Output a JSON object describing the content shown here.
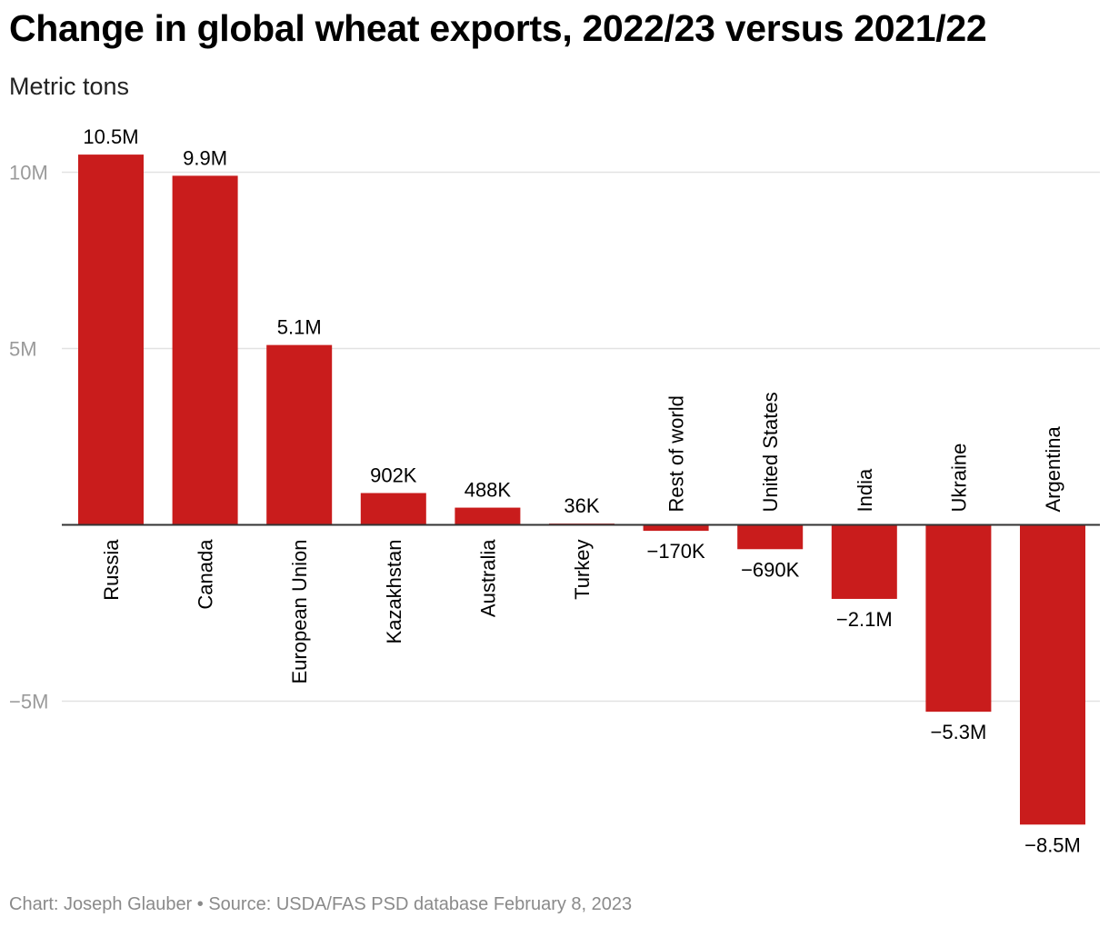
{
  "title": "Change in global wheat exports, 2022/23 versus 2021/22",
  "subtitle": "Metric tons",
  "footer": "Chart: Joseph Glauber • Source: USDA/FAS PSD database February 8, 2023",
  "colors": {
    "bar": "#c91c1c",
    "grid": "#e2e2e2",
    "zero": "#333333"
  },
  "chart_data": {
    "type": "bar",
    "title": "Change in global wheat exports, 2022/23 versus 2021/22",
    "ylabel": "Metric tons",
    "xlabel": "",
    "ylim": [
      -9000000,
      10500000
    ],
    "yticks": [
      {
        "value": 10000000,
        "label": "10M"
      },
      {
        "value": 5000000,
        "label": "5M"
      },
      {
        "value": -5000000,
        "label": "−5M"
      }
    ],
    "grid": true,
    "categories": [
      "Russia",
      "Canada",
      "European Union",
      "Kazakhstan",
      "Australia",
      "Turkey",
      "Rest of world",
      "United States",
      "India",
      "Ukraine",
      "Argentina"
    ],
    "values": [
      10500000,
      9900000,
      5100000,
      902000,
      488000,
      36000,
      -170000,
      -690000,
      -2100000,
      -5300000,
      -8500000
    ],
    "data_labels": [
      "10.5M",
      "9.9M",
      "5.1M",
      "902K",
      "488K",
      "36K",
      "−170K",
      "−690K",
      "−2.1M",
      "−5.3M",
      "−8.5M"
    ]
  }
}
